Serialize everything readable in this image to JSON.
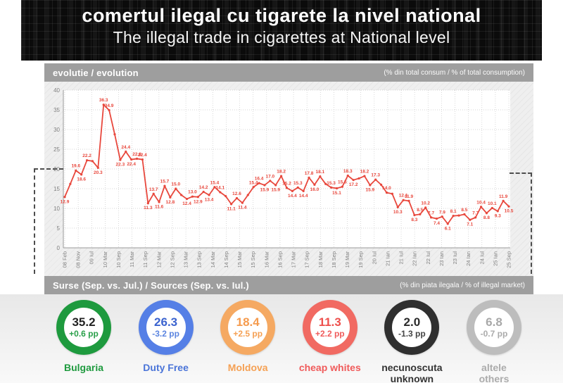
{
  "header": {
    "title": "comertul ilegal cu tigarete la nivel national",
    "subtitle": "The illegal trade in cigarettes at National level"
  },
  "evolution_bar": {
    "left": "evolutie / evolution",
    "right": "(% din total consum / % of total consumption)"
  },
  "sources_bar": {
    "left": "Surse (Sep. vs. Jul.) / Sources (Sep. vs. Iul.)",
    "right": "(% din piata ilegala / % of illegal market)"
  },
  "chart_data": {
    "type": "line",
    "title": "evolutie / evolution",
    "ylabel": "% din total consum / % of total consumption",
    "ylim": [
      0,
      40
    ],
    "yticks": [
      0,
      5,
      10,
      15,
      20,
      25,
      30,
      35,
      40
    ],
    "grid": true,
    "line_color": "#e8473c",
    "axis_color": "#999999",
    "grid_color": "#c9c9c9",
    "tick_label_color": "#808080",
    "threshold_level": 20,
    "x_tick_labels": [
      "08 Feb",
      "08 Nov",
      "09 Iul",
      "10 Mar",
      "10 Sep",
      "11 Mar",
      "11 Sep",
      "12 Mar",
      "12 Sep",
      "13 Mar",
      "13 Sep",
      "14 Mar",
      "14 Sep",
      "15 Mar",
      "15 Sep",
      "16 Mar",
      "16 Sep",
      "17 Mar",
      "17 Sep",
      "18 Mar",
      "18 Sep",
      "19 Mar",
      "19 Sep",
      "20 Iul",
      "21 Ian",
      "21 Iul",
      "22 Ian",
      "22 Iul",
      "23 Ian",
      "23 Iul",
      "24 Ian",
      "24 Iul",
      "25 Ian",
      "25 Sep"
    ],
    "values": [
      12.9,
      16.2,
      19.6,
      18.6,
      22.2,
      22.0,
      20.3,
      36.3,
      34.9,
      28.8,
      22.3,
      24.4,
      22.4,
      22.6,
      22.4,
      11.3,
      13.7,
      11.6,
      15.7,
      12.8,
      15.0,
      13.4,
      12.4,
      13.0,
      12.9,
      14.2,
      13.4,
      15.4,
      14.1,
      13.1,
      11.1,
      12.6,
      11.4,
      13.4,
      15.4,
      16.4,
      15.9,
      17.0,
      15.9,
      18.2,
      15.2,
      14.4,
      15.3,
      14.4,
      17.8,
      16.0,
      18.1,
      16.2,
      15.3,
      15.1,
      15.5,
      18.3,
      17.2,
      17.6,
      18.2,
      15.9,
      17.3,
      16.0,
      14.0,
      13.7,
      10.3,
      12.1,
      11.9,
      8.3,
      8.5,
      10.2,
      7.7,
      7.4,
      7.9,
      6.1,
      8.1,
      8.2,
      8.5,
      7.1,
      7.7,
      10.4,
      8.8,
      10.1,
      9.3,
      11.9,
      10.5
    ]
  },
  "sources": [
    {
      "id": "bulgaria",
      "value": "35.2",
      "delta": "+0.6 pp",
      "labels": [
        "Bulgaria"
      ],
      "colors": {
        "ring": "#1e9a3e",
        "number": "#222222",
        "delta": "#2aa04a",
        "label": "#1e9a3e"
      }
    },
    {
      "id": "duty-free",
      "value": "26.3",
      "delta": "-3.2 pp",
      "labels": [
        "Duty Free"
      ],
      "colors": {
        "ring": "#557fe6",
        "number": "#3b63cf",
        "delta": "#5b85e0",
        "label": "#4a74d8"
      }
    },
    {
      "id": "moldova",
      "value": "18.4",
      "delta": "+2.5 pp",
      "labels": [
        "Moldova"
      ],
      "colors": {
        "ring": "#f5a962",
        "number": "#f59b4e",
        "delta": "#f5a053",
        "label": "#f5a053"
      }
    },
    {
      "id": "cheap-whites",
      "value": "11.3",
      "delta": "+2.2 pp",
      "labels": [
        "cheap whites"
      ],
      "colors": {
        "ring": "#f16a62",
        "number": "#ee4f4c",
        "delta": "#f05b5b",
        "label": "#f05b5b"
      }
    },
    {
      "id": "unknown",
      "value": "2.0",
      "delta": "-1.3 pp",
      "labels": [
        "necunoscuta",
        "unknown"
      ],
      "colors": {
        "ring": "#2f2f2f",
        "number": "#2b2b2b",
        "delta": "#444444",
        "label": "#333333"
      }
    },
    {
      "id": "others",
      "value": "6.8",
      "delta": "-0.7 pp",
      "labels": [
        "altele",
        "others"
      ],
      "colors": {
        "ring": "#bdbdbd",
        "number": "#a8a8a8",
        "delta": "#ababab",
        "label": "#ababab"
      }
    }
  ]
}
